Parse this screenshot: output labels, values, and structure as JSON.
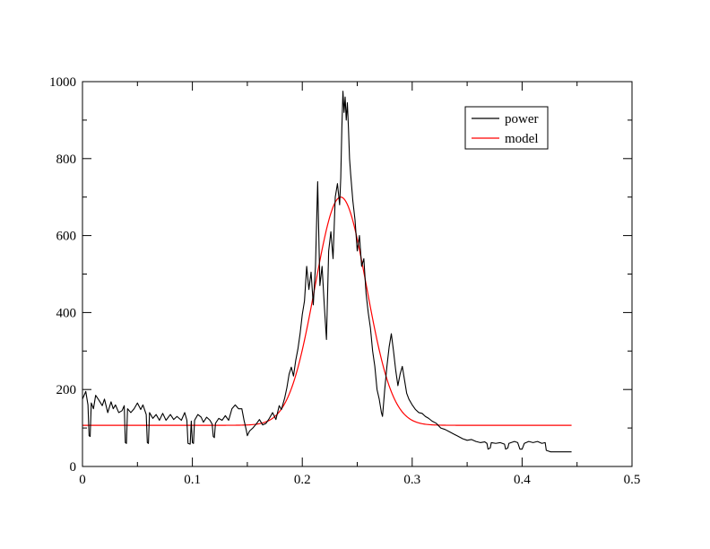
{
  "chart_data": {
    "type": "line",
    "title": "",
    "xlabel": "",
    "ylabel": "",
    "xlim": [
      0,
      0.5
    ],
    "ylim": [
      0,
      1000
    ],
    "x_ticks": [
      0,
      0.1,
      0.2,
      0.3,
      0.4,
      0.5
    ],
    "x_tick_labels": [
      "0",
      "0.1",
      "0.2",
      "0.3",
      "0.4",
      "0.5"
    ],
    "y_ticks": [
      0,
      200,
      400,
      600,
      800,
      1000
    ],
    "y_tick_labels": [
      "0",
      "200",
      "400",
      "600",
      "800",
      "1000"
    ],
    "grid": false,
    "legend_position": "top-right",
    "series": [
      {
        "name": "power",
        "color": "#000000",
        "points": [
          [
            0.0,
            175
          ],
          [
            0.003,
            195
          ],
          [
            0.005,
            160
          ],
          [
            0.006,
            80
          ],
          [
            0.007,
            78
          ],
          [
            0.008,
            165
          ],
          [
            0.01,
            150
          ],
          [
            0.012,
            185
          ],
          [
            0.015,
            172
          ],
          [
            0.018,
            158
          ],
          [
            0.02,
            175
          ],
          [
            0.023,
            140
          ],
          [
            0.026,
            168
          ],
          [
            0.028,
            150
          ],
          [
            0.03,
            160
          ],
          [
            0.033,
            140
          ],
          [
            0.036,
            145
          ],
          [
            0.038,
            158
          ],
          [
            0.039,
            62
          ],
          [
            0.04,
            60
          ],
          [
            0.041,
            150
          ],
          [
            0.044,
            140
          ],
          [
            0.047,
            150
          ],
          [
            0.05,
            165
          ],
          [
            0.053,
            148
          ],
          [
            0.055,
            160
          ],
          [
            0.058,
            135
          ],
          [
            0.059,
            62
          ],
          [
            0.06,
            60
          ],
          [
            0.061,
            140
          ],
          [
            0.064,
            125
          ],
          [
            0.067,
            135
          ],
          [
            0.07,
            120
          ],
          [
            0.073,
            138
          ],
          [
            0.076,
            120
          ],
          [
            0.08,
            135
          ],
          [
            0.083,
            122
          ],
          [
            0.086,
            130
          ],
          [
            0.09,
            120
          ],
          [
            0.093,
            140
          ],
          [
            0.095,
            120
          ],
          [
            0.096,
            60
          ],
          [
            0.098,
            58
          ],
          [
            0.099,
            118
          ],
          [
            0.1,
            62
          ],
          [
            0.101,
            60
          ],
          [
            0.102,
            120
          ],
          [
            0.105,
            135
          ],
          [
            0.108,
            128
          ],
          [
            0.11,
            115
          ],
          [
            0.113,
            128
          ],
          [
            0.116,
            120
          ],
          [
            0.118,
            110
          ],
          [
            0.119,
            78
          ],
          [
            0.12,
            75
          ],
          [
            0.121,
            112
          ],
          [
            0.124,
            125
          ],
          [
            0.127,
            120
          ],
          [
            0.13,
            132
          ],
          [
            0.133,
            120
          ],
          [
            0.136,
            150
          ],
          [
            0.139,
            160
          ],
          [
            0.142,
            150
          ],
          [
            0.145,
            150
          ],
          [
            0.147,
            120
          ],
          [
            0.149,
            95
          ],
          [
            0.15,
            80
          ],
          [
            0.152,
            92
          ],
          [
            0.155,
            100
          ],
          [
            0.158,
            110
          ],
          [
            0.161,
            122
          ],
          [
            0.164,
            108
          ],
          [
            0.167,
            112
          ],
          [
            0.17,
            125
          ],
          [
            0.173,
            140
          ],
          [
            0.176,
            122
          ],
          [
            0.179,
            158
          ],
          [
            0.181,
            148
          ],
          [
            0.184,
            178
          ],
          [
            0.186,
            205
          ],
          [
            0.188,
            240
          ],
          [
            0.19,
            258
          ],
          [
            0.192,
            235
          ],
          [
            0.194,
            275
          ],
          [
            0.196,
            305
          ],
          [
            0.198,
            345
          ],
          [
            0.2,
            395
          ],
          [
            0.202,
            430
          ],
          [
            0.204,
            520
          ],
          [
            0.206,
            460
          ],
          [
            0.208,
            505
          ],
          [
            0.21,
            420
          ],
          [
            0.212,
            520
          ],
          [
            0.214,
            740
          ],
          [
            0.216,
            470
          ],
          [
            0.218,
            520
          ],
          [
            0.22,
            420
          ],
          [
            0.222,
            330
          ],
          [
            0.224,
            560
          ],
          [
            0.226,
            610
          ],
          [
            0.228,
            540
          ],
          [
            0.23,
            700
          ],
          [
            0.232,
            735
          ],
          [
            0.234,
            680
          ],
          [
            0.235,
            750
          ],
          [
            0.236,
            880
          ],
          [
            0.237,
            975
          ],
          [
            0.238,
            920
          ],
          [
            0.239,
            960
          ],
          [
            0.24,
            900
          ],
          [
            0.241,
            945
          ],
          [
            0.242,
            880
          ],
          [
            0.243,
            800
          ],
          [
            0.244,
            760
          ],
          [
            0.246,
            690
          ],
          [
            0.248,
            640
          ],
          [
            0.25,
            560
          ],
          [
            0.252,
            600
          ],
          [
            0.254,
            520
          ],
          [
            0.256,
            540
          ],
          [
            0.258,
            450
          ],
          [
            0.26,
            400
          ],
          [
            0.262,
            360
          ],
          [
            0.264,
            300
          ],
          [
            0.266,
            260
          ],
          [
            0.268,
            200
          ],
          [
            0.27,
            175
          ],
          [
            0.272,
            140
          ],
          [
            0.273,
            130
          ],
          [
            0.275,
            200
          ],
          [
            0.277,
            260
          ],
          [
            0.279,
            310
          ],
          [
            0.281,
            345
          ],
          [
            0.283,
            300
          ],
          [
            0.285,
            250
          ],
          [
            0.287,
            210
          ],
          [
            0.289,
            240
          ],
          [
            0.291,
            260
          ],
          [
            0.293,
            225
          ],
          [
            0.295,
            190
          ],
          [
            0.297,
            175
          ],
          [
            0.3,
            160
          ],
          [
            0.303,
            148
          ],
          [
            0.306,
            140
          ],
          [
            0.309,
            138
          ],
          [
            0.312,
            130
          ],
          [
            0.315,
            125
          ],
          [
            0.318,
            118
          ],
          [
            0.322,
            112
          ],
          [
            0.326,
            100
          ],
          [
            0.33,
            96
          ],
          [
            0.334,
            90
          ],
          [
            0.338,
            84
          ],
          [
            0.342,
            78
          ],
          [
            0.346,
            72
          ],
          [
            0.35,
            68
          ],
          [
            0.354,
            70
          ],
          [
            0.358,
            65
          ],
          [
            0.362,
            62
          ],
          [
            0.366,
            64
          ],
          [
            0.368,
            60
          ],
          [
            0.369,
            45
          ],
          [
            0.371,
            48
          ],
          [
            0.372,
            62
          ],
          [
            0.376,
            60
          ],
          [
            0.38,
            62
          ],
          [
            0.384,
            58
          ],
          [
            0.385,
            45
          ],
          [
            0.387,
            48
          ],
          [
            0.388,
            60
          ],
          [
            0.39,
            62
          ],
          [
            0.393,
            65
          ],
          [
            0.396,
            62
          ],
          [
            0.398,
            45
          ],
          [
            0.4,
            45
          ],
          [
            0.402,
            60
          ],
          [
            0.406,
            65
          ],
          [
            0.41,
            62
          ],
          [
            0.414,
            65
          ],
          [
            0.418,
            60
          ],
          [
            0.421,
            62
          ],
          [
            0.422,
            42
          ],
          [
            0.424,
            40
          ],
          [
            0.426,
            38
          ],
          [
            0.43,
            38
          ],
          [
            0.435,
            38
          ],
          [
            0.44,
            38
          ],
          [
            0.445,
            38
          ]
        ]
      },
      {
        "name": "model",
        "color": "#ff0000",
        "baseline": 107,
        "amplitude": 593,
        "center": 0.235,
        "sigma": 0.0235,
        "x_range": [
          0,
          0.445
        ]
      }
    ]
  }
}
